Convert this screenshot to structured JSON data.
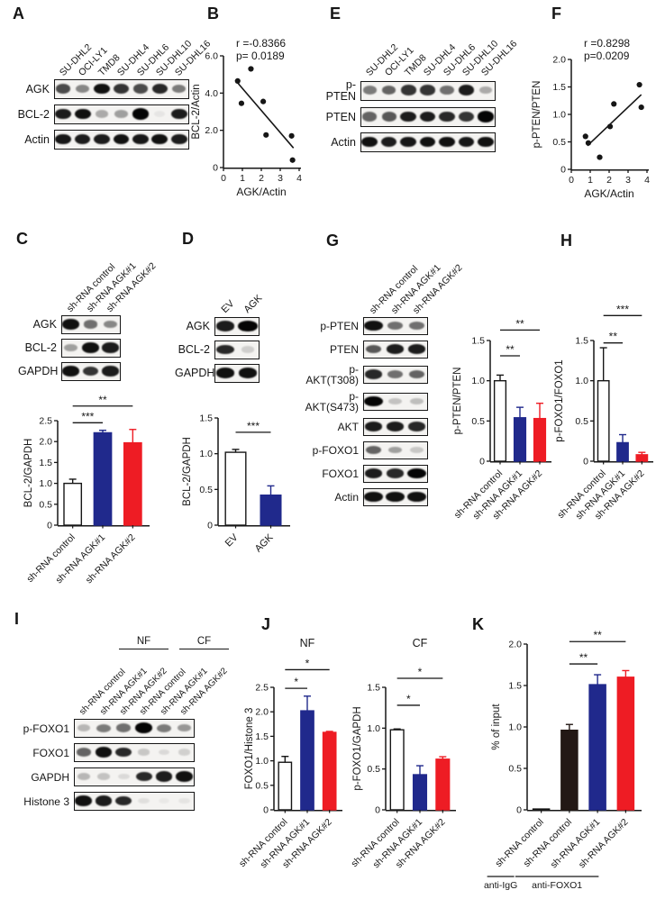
{
  "figure": {
    "panels": {
      "A": "A",
      "B": "B",
      "C": "C",
      "D": "D",
      "E": "E",
      "F": "F",
      "G": "G",
      "H": "H",
      "I": "I",
      "J": "J",
      "K": "K"
    }
  },
  "colors": {
    "control_bar": "#ffffff",
    "agk1_bar": "#20298c",
    "agk2_bar": "#ee1c24",
    "igg_black_bar": "#231815",
    "axis": "#161616"
  },
  "blots": [
    {
      "panel": "A",
      "lane_labels": [
        "SU-DHL2",
        "OCI-LY1",
        "TMD8",
        "SU-DHL4",
        "SU-DHL6",
        "SU-DHL10",
        "SU-DHL16"
      ],
      "rows": [
        {
          "label": "AGK",
          "bands": [
            0.7,
            0.45,
            0.95,
            0.8,
            0.7,
            0.85,
            0.5
          ]
        },
        {
          "label": "BCL-2",
          "bands": [
            0.9,
            0.95,
            0.3,
            0.35,
            1.0,
            0.05,
            0.9
          ]
        },
        {
          "label": "Actin",
          "bands": [
            0.92,
            0.9,
            0.9,
            0.95,
            0.92,
            0.95,
            0.9
          ]
        }
      ]
    },
    {
      "panel": "E",
      "lane_labels": [
        "SU-DHL2",
        "OCI-LY1",
        "TMD8",
        "SU-DHL4",
        "SU-DHL6",
        "SU-DHL10",
        "SU-DHL16"
      ],
      "rows": [
        {
          "label": "p-PTEN",
          "bands": [
            0.5,
            0.6,
            0.8,
            0.8,
            0.55,
            0.9,
            0.3
          ]
        },
        {
          "label": "PTEN",
          "bands": [
            0.6,
            0.65,
            0.9,
            0.9,
            0.85,
            0.8,
            1.0
          ]
        },
        {
          "label": "Actin",
          "bands": [
            0.95,
            0.9,
            0.92,
            0.95,
            0.95,
            0.92,
            0.95
          ]
        }
      ]
    },
    {
      "panel": "C",
      "lane_labels": [
        "sh-RNA control",
        "sh-RNA AGK#1",
        "sh-RNA AGK#2"
      ],
      "rows": [
        {
          "label": "AGK",
          "bands": [
            0.95,
            0.55,
            0.45
          ]
        },
        {
          "label": "BCL-2",
          "bands": [
            0.35,
            0.95,
            0.9
          ]
        },
        {
          "label": "GAPDH",
          "bands": [
            0.95,
            0.8,
            0.9
          ]
        }
      ]
    },
    {
      "panel": "D",
      "lane_labels": [
        "EV",
        "AGK"
      ],
      "rows": [
        {
          "label": "AGK",
          "bands": [
            0.9,
            1.0
          ]
        },
        {
          "label": "BCL-2",
          "bands": [
            0.85,
            0.15
          ]
        },
        {
          "label": "GAPDH",
          "bands": [
            0.95,
            0.95
          ]
        }
      ]
    },
    {
      "panel": "G",
      "lane_labels": [
        "sh-RNA control",
        "sh-RNA AGK#1",
        "sh-RNA AGK#2"
      ],
      "rows": [
        {
          "label": "p-PTEN",
          "bands": [
            0.95,
            0.55,
            0.55
          ]
        },
        {
          "label": "PTEN",
          "bands": [
            0.65,
            0.9,
            0.9
          ]
        },
        {
          "label": "p-AKT(T308)",
          "bands": [
            0.85,
            0.55,
            0.6
          ]
        },
        {
          "label": "p-AKT(S473)",
          "bands": [
            1.0,
            0.2,
            0.22
          ]
        },
        {
          "label": "AKT",
          "bands": [
            0.9,
            0.9,
            0.85
          ]
        },
        {
          "label": "p-FOXO1",
          "bands": [
            0.6,
            0.35,
            0.18
          ]
        },
        {
          "label": "FOXO1",
          "bands": [
            0.9,
            0.85,
            1.0
          ]
        },
        {
          "label": "Actin",
          "bands": [
            0.95,
            0.95,
            0.95
          ]
        }
      ]
    },
    {
      "panel": "I",
      "groups": [
        {
          "label": "NF",
          "from": 0,
          "to": 2
        },
        {
          "label": "CF",
          "from": 3,
          "to": 5
        }
      ],
      "lane_labels": [
        "sh-RNA control",
        "sh-RNA AGK#1",
        "sh-RNA AGK#2",
        "sh-RNA control",
        "sh-RNA AGK#1",
        "sh-RNA AGK#2"
      ],
      "rows": [
        {
          "label": "p-FOXO1",
          "bands": [
            0.25,
            0.5,
            0.55,
            1.0,
            0.5,
            0.38
          ]
        },
        {
          "label": "FOXO1",
          "bands": [
            0.6,
            0.95,
            0.85,
            0.18,
            0.1,
            0.14
          ]
        },
        {
          "label": "GAPDH",
          "bands": [
            0.25,
            0.2,
            0.1,
            0.85,
            0.9,
            0.95
          ]
        },
        {
          "label": "Histone 3",
          "bands": [
            0.95,
            0.9,
            0.85,
            0.08,
            0.04,
            0.06
          ]
        }
      ]
    }
  ],
  "chart_data": [
    {
      "panel": "B",
      "type": "scatter",
      "annotation": [
        "r =-0.8366",
        "p= 0.0189"
      ],
      "xlabel": "AGK/Actin",
      "ylabel": "BCL-2/Actin",
      "xlim": [
        0,
        4
      ],
      "ylim": [
        0,
        6
      ],
      "xticks": [
        [
          0,
          "0"
        ],
        [
          1,
          "1"
        ],
        [
          2,
          "2"
        ],
        [
          3,
          "3"
        ],
        [
          4,
          "4"
        ]
      ],
      "yticks": [
        [
          0,
          "0"
        ],
        [
          2,
          "2.0"
        ],
        [
          4,
          "4.0"
        ],
        [
          6,
          "6.0"
        ]
      ],
      "points": [
        [
          0.75,
          4.65
        ],
        [
          1.45,
          5.3
        ],
        [
          0.95,
          3.45
        ],
        [
          2.1,
          3.55
        ],
        [
          2.25,
          1.75
        ],
        [
          3.6,
          1.7
        ],
        [
          3.65,
          0.4
        ]
      ],
      "trendline": [
        [
          0.75,
          4.55
        ],
        [
          3.7,
          1.05
        ]
      ]
    },
    {
      "panel": "F",
      "type": "scatter",
      "annotation": [
        "r =0.8298",
        "p=0.0209"
      ],
      "xlabel": "AGK/Actin",
      "ylabel": "p-PTEN/PTEN",
      "xlim": [
        0,
        4
      ],
      "ylim": [
        0,
        2
      ],
      "xticks": [
        [
          0,
          "0"
        ],
        [
          1,
          "1"
        ],
        [
          2,
          "2"
        ],
        [
          3,
          "3"
        ],
        [
          4,
          "4"
        ]
      ],
      "yticks": [
        [
          0,
          "0"
        ],
        [
          0.5,
          "0.5"
        ],
        [
          1,
          "1.0"
        ],
        [
          1.5,
          "1.5"
        ],
        [
          2,
          "2.0"
        ]
      ],
      "points": [
        [
          0.75,
          0.6
        ],
        [
          0.9,
          0.48
        ],
        [
          1.5,
          0.22
        ],
        [
          2.05,
          0.78
        ],
        [
          2.25,
          1.19
        ],
        [
          3.6,
          1.54
        ],
        [
          3.7,
          1.13
        ]
      ],
      "trendline": [
        [
          0.85,
          0.43
        ],
        [
          3.7,
          1.36
        ]
      ]
    },
    {
      "panel": "C",
      "type": "bar",
      "ylabel": "BCL-2/GAPDH",
      "ylim": [
        0,
        2.5
      ],
      "yticks": [
        [
          0,
          "0"
        ],
        [
          0.5,
          "0.5"
        ],
        [
          1,
          "1.0"
        ],
        [
          1.5,
          "1.5"
        ],
        [
          2,
          "2.0"
        ],
        [
          2.5,
          "2.5"
        ]
      ],
      "bars": [
        {
          "label": "sh-RNA control",
          "value": 1.0,
          "err": 0.1,
          "color": "#ffffff"
        },
        {
          "label": "sh-RNA AGK#1",
          "value": 2.21,
          "err": 0.06,
          "color": "#20298c"
        },
        {
          "label": "sh-RNA AGK#2",
          "value": 1.97,
          "err": 0.32,
          "color": "#ee1c24"
        }
      ],
      "sig": [
        {
          "from": 0,
          "to": 1,
          "y": 2.45,
          "label": "***"
        },
        {
          "from": 0,
          "to": 2,
          "y": 2.85,
          "label": "**"
        }
      ]
    },
    {
      "panel": "D",
      "type": "bar",
      "ylabel": "BCL-2/GAPDH",
      "ylim": [
        0,
        1.5
      ],
      "yticks": [
        [
          0,
          "0"
        ],
        [
          0.5,
          "0.5"
        ],
        [
          1,
          "1.0"
        ],
        [
          1.5,
          "1.5"
        ]
      ],
      "bars": [
        {
          "label": "EV",
          "value": 1.02,
          "err": 0.04,
          "color": "#ffffff"
        },
        {
          "label": "AGK",
          "value": 0.42,
          "err": 0.13,
          "color": "#20298c"
        }
      ],
      "sig": [
        {
          "from": 0,
          "to": 1,
          "y": 1.3,
          "label": "***"
        }
      ]
    },
    {
      "panel": "H1",
      "type": "bar",
      "ylabel": "p-PTEN/PTEN",
      "ylim": [
        0,
        1.5
      ],
      "yticks": [
        [
          0,
          "0"
        ],
        [
          0.5,
          "0.5"
        ],
        [
          1,
          "1.0"
        ],
        [
          1.5,
          "1.5"
        ]
      ],
      "bars": [
        {
          "label": "sh-RNA control",
          "value": 1.0,
          "err": 0.07,
          "color": "#ffffff"
        },
        {
          "label": "sh-RNA AGK#1",
          "value": 0.54,
          "err": 0.13,
          "color": "#20298c"
        },
        {
          "label": "sh-RNA AGK#2",
          "value": 0.53,
          "err": 0.19,
          "color": "#ee1c24"
        }
      ],
      "sig": [
        {
          "from": 0,
          "to": 1,
          "y": 1.31,
          "label": "**"
        },
        {
          "from": 0,
          "to": 2,
          "y": 1.63,
          "label": "**"
        }
      ]
    },
    {
      "panel": "H2",
      "type": "bar",
      "ylabel": "p-FOXO1/FOXO1",
      "ylim": [
        0,
        1.5
      ],
      "yticks": [
        [
          0,
          "0"
        ],
        [
          0.5,
          "0.5"
        ],
        [
          1,
          "1.0"
        ],
        [
          1.5,
          "1.5"
        ]
      ],
      "bars": [
        {
          "label": "sh-RNA control",
          "value": 1.0,
          "err": 0.41,
          "color": "#ffffff"
        },
        {
          "label": "sh-RNA AGK#1",
          "value": 0.23,
          "err": 0.1,
          "color": "#20298c"
        },
        {
          "label": "sh-RNA AGK#2",
          "value": 0.08,
          "err": 0.03,
          "color": "#ee1c24"
        }
      ],
      "sig": [
        {
          "from": 0,
          "to": 1,
          "y": 1.47,
          "label": "**"
        },
        {
          "from": 0,
          "to": 2,
          "y": 1.81,
          "label": "***"
        }
      ]
    },
    {
      "panel": "J1",
      "type": "bar",
      "title": "NF",
      "ylabel": "FOXO1/Histone 3",
      "ylim": [
        0,
        2.5
      ],
      "yticks": [
        [
          0,
          "0"
        ],
        [
          0.5,
          "0.5"
        ],
        [
          1,
          "1.0"
        ],
        [
          1.5,
          "1.5"
        ],
        [
          2,
          "2.0"
        ],
        [
          2.5,
          "2.5"
        ]
      ],
      "bars": [
        {
          "label": "sh-RNA control",
          "value": 0.97,
          "err": 0.12,
          "color": "#ffffff"
        },
        {
          "label": "sh-RNA AGK#1",
          "value": 2.02,
          "err": 0.3,
          "color": "#20298c"
        },
        {
          "label": "sh-RNA AGK#2",
          "value": 1.58,
          "err": 0.02,
          "color": "#ee1c24"
        }
      ],
      "sig": [
        {
          "from": 0,
          "to": 1,
          "y": 2.48,
          "label": "*"
        },
        {
          "from": 0,
          "to": 2,
          "y": 2.86,
          "label": "*"
        }
      ]
    },
    {
      "panel": "J2",
      "type": "bar",
      "title": "CF",
      "ylabel": "p-FOXO1/GAPDH",
      "ylim": [
        0,
        1.5
      ],
      "yticks": [
        [
          0,
          "0"
        ],
        [
          0.5,
          "0.5"
        ],
        [
          1,
          "1.0"
        ],
        [
          1.5,
          "1.5"
        ]
      ],
      "bars": [
        {
          "label": "sh-RNA control",
          "value": 0.98,
          "err": 0.01,
          "color": "#ffffff"
        },
        {
          "label": "sh-RNA AGK#1",
          "value": 0.43,
          "err": 0.11,
          "color": "#20298c"
        },
        {
          "label": "sh-RNA AGK#2",
          "value": 0.62,
          "err": 0.03,
          "color": "#ee1c24"
        }
      ],
      "sig": [
        {
          "from": 0,
          "to": 1,
          "y": 1.28,
          "label": "*"
        },
        {
          "from": 0,
          "to": 2,
          "y": 1.61,
          "label": "*"
        }
      ]
    },
    {
      "panel": "K",
      "type": "bar",
      "ylabel": "% of input",
      "ylim": [
        0,
        2.0
      ],
      "yticks": [
        [
          0,
          "0"
        ],
        [
          0.5,
          "0.5"
        ],
        [
          1,
          "1.0"
        ],
        [
          1.5,
          "1.5"
        ],
        [
          2,
          "2.0"
        ]
      ],
      "bars": [
        {
          "label": "sh-RNA control",
          "value": 0.01,
          "err": 0,
          "color": "#ffffff"
        },
        {
          "label": "sh-RNA control",
          "value": 0.96,
          "err": 0.07,
          "color": "#231815"
        },
        {
          "label": "sh-RNA AGK#1",
          "value": 1.51,
          "err": 0.12,
          "color": "#20298c"
        },
        {
          "label": "sh-RNA AGK#2",
          "value": 1.6,
          "err": 0.08,
          "color": "#ee1c24"
        }
      ],
      "sig": [
        {
          "from": 1,
          "to": 2,
          "y": 1.76,
          "label": "**"
        },
        {
          "from": 1,
          "to": 3,
          "y": 2.03,
          "label": "**"
        }
      ],
      "groups": [
        {
          "label": "anti-IgG",
          "from": 0,
          "to": 0
        },
        {
          "label": "anti-FOXO1",
          "from": 1,
          "to": 3
        }
      ]
    }
  ]
}
